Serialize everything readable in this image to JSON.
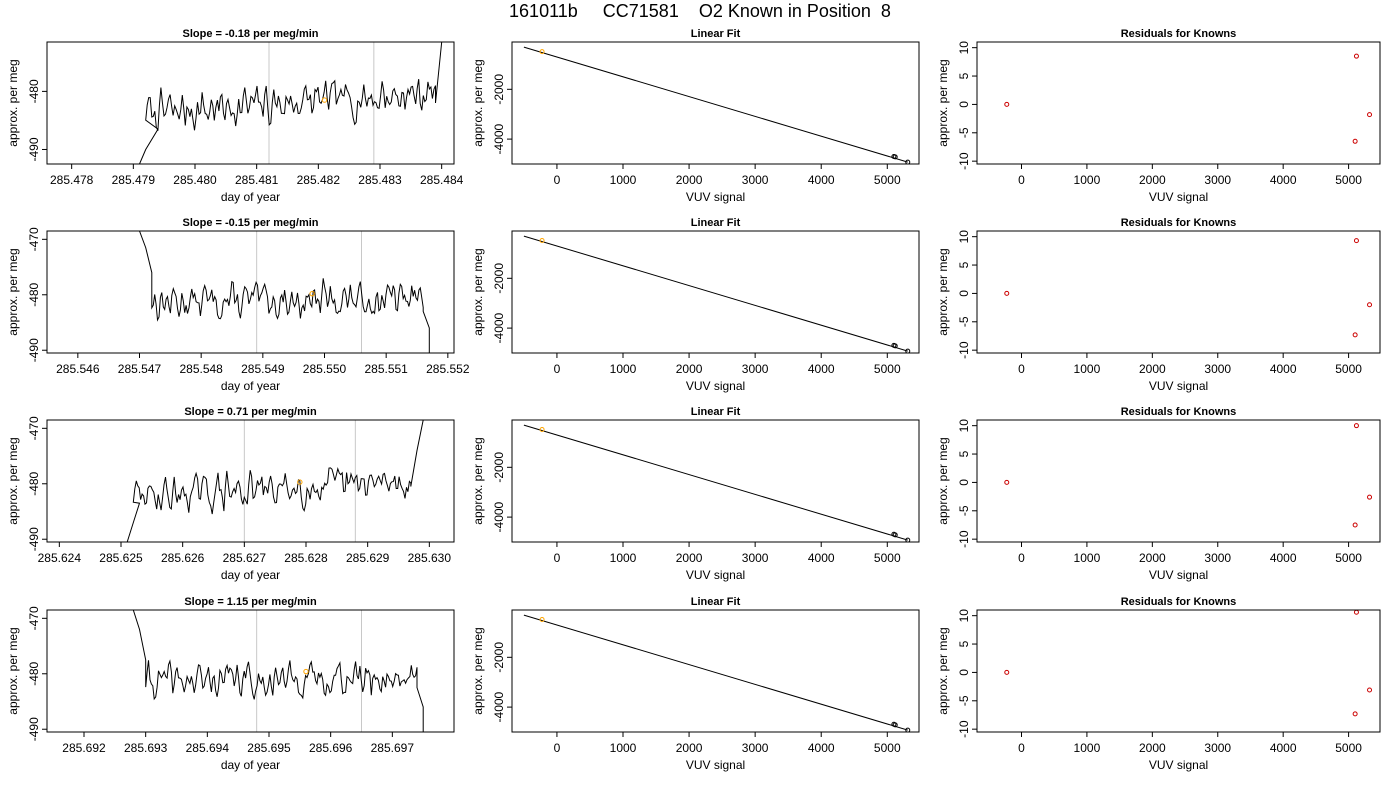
{
  "page": {
    "title": "161011b     CC71581    O2 Known in Position  8"
  },
  "colors": {
    "trace": "#000000",
    "axis": "#000000",
    "vline": "#c8c8c8",
    "mean_point": "#ffa500",
    "fit_point_hi": "#ffa500",
    "fit_point": "#000000",
    "residual_point": "#cc0000"
  },
  "chart_data": [
    {
      "type": "line",
      "panel": "timeseries",
      "title": "Slope =  -0.18  per meg/min",
      "xlabel": "day of year",
      "ylabel": "approx. per meg",
      "xlim": [
        285.4776,
        285.4842
      ],
      "ylim": [
        -492.5,
        -471.5
      ],
      "xticks": [
        285.478,
        285.479,
        285.48,
        285.481,
        285.482,
        285.483,
        285.484
      ],
      "yticks": [
        -490,
        -480
      ],
      "vlines": [
        285.4812,
        285.4829
      ],
      "mean_point": {
        "x": 285.4821,
        "y": -481.5
      },
      "trace": {
        "start": 285.4792,
        "end": 285.4839,
        "base": -482,
        "amp": 2.6,
        "trend": 3.5,
        "head": [
          [
            285.4791,
            -492.5
          ],
          [
            285.4792,
            -490
          ],
          [
            285.4794,
            -486.5
          ]
        ],
        "tail": [
          [
            285.4839,
            -482
          ],
          [
            285.484,
            -471.5
          ]
        ],
        "seed": 7
      }
    },
    {
      "type": "line",
      "panel": "timeseries",
      "title": "Slope =  -0.15  per meg/min",
      "xlabel": "day of year",
      "ylabel": "approx. per meg",
      "xlim": [
        285.5455,
        285.5521
      ],
      "ylim": [
        -490.5,
        -468.5
      ],
      "xticks": [
        285.546,
        285.547,
        285.548,
        285.549,
        285.55,
        285.551,
        285.552
      ],
      "yticks": [
        -490,
        -480,
        -470
      ],
      "vlines": [
        285.5489,
        285.5506
      ],
      "mean_point": {
        "x": 285.5498,
        "y": -479.8
      },
      "trace": {
        "start": 285.5472,
        "end": 285.5516,
        "base": -481,
        "amp": 2.3,
        "trend": 0.6,
        "head": [
          [
            285.547,
            -468.5
          ],
          [
            285.5471,
            -471.5
          ],
          [
            285.5472,
            -476
          ]
        ],
        "tail": [
          [
            285.5516,
            -483
          ],
          [
            285.5517,
            -486
          ],
          [
            285.5517,
            -490.5
          ]
        ],
        "seed": 13
      }
    },
    {
      "type": "line",
      "panel": "timeseries",
      "title": "Slope =  0.71  per meg/min",
      "xlabel": "day of year",
      "ylabel": "approx. per meg",
      "xlim": [
        285.6238,
        285.6304
      ],
      "ylim": [
        -490.5,
        -468.5
      ],
      "xticks": [
        285.624,
        285.625,
        285.626,
        285.627,
        285.628,
        285.629,
        285.63
      ],
      "yticks": [
        -490,
        -480,
        -470
      ],
      "vlines": [
        285.627,
        285.6288
      ],
      "mean_point": {
        "x": 285.6279,
        "y": -479.7
      },
      "trace": {
        "start": 285.6252,
        "end": 285.6297,
        "base": -481,
        "amp": 2.4,
        "trend": 2.5,
        "head": [
          [
            285.6251,
            -490.5
          ],
          [
            285.6252,
            -487
          ],
          [
            285.6253,
            -483.5
          ]
        ],
        "tail": [
          [
            285.6297,
            -480.5
          ],
          [
            285.6298,
            -474
          ],
          [
            285.6299,
            -468.5
          ]
        ],
        "seed": 29
      }
    },
    {
      "type": "line",
      "panel": "timeseries",
      "title": "Slope =  1.15  per meg/min",
      "xlabel": "day of year",
      "ylabel": "approx. per meg",
      "xlim": [
        285.6914,
        285.698
      ],
      "ylim": [
        -490.5,
        -468.5
      ],
      "xticks": [
        285.692,
        285.693,
        285.694,
        285.695,
        285.696,
        285.697
      ],
      "yticks": [
        -490,
        -480,
        -470
      ],
      "vlines": [
        285.6948,
        285.6965
      ],
      "mean_point": {
        "x": 285.6956,
        "y": -479.6
      },
      "trace": {
        "start": 285.693,
        "end": 285.6974,
        "base": -481,
        "amp": 2.3,
        "trend": 0.8,
        "head": [
          [
            285.6928,
            -468.5
          ],
          [
            285.6929,
            -472
          ],
          [
            285.693,
            -477.5
          ]
        ],
        "tail": [
          [
            285.6974,
            -482.5
          ],
          [
            285.6975,
            -486
          ],
          [
            285.6975,
            -490.5
          ]
        ],
        "seed": 41
      }
    },
    {
      "type": "scatter",
      "panel": "fit",
      "title": "Linear Fit",
      "xlabel": "VUV signal",
      "ylabel": "approx. per meg",
      "xlim": [
        -680,
        5480
      ],
      "ylim": [
        -5000,
        -100
      ],
      "xticks": [
        0,
        1000,
        2000,
        3000,
        4000,
        5000
      ],
      "yticks": [
        -2000,
        -4000
      ],
      "fit_line": [
        [
          -500,
          -305
        ],
        [
          5310,
          -4925
        ]
      ],
      "points": [
        {
          "x": -225,
          "y": -485,
          "hi": true
        },
        {
          "x": 5100,
          "y": -4700
        },
        {
          "x": 5120,
          "y": -4715
        },
        {
          "x": 5310,
          "y": -4925
        }
      ]
    },
    {
      "type": "scatter",
      "panel": "fit",
      "title": "Linear Fit",
      "xlabel": "VUV signal",
      "ylabel": "approx. per meg",
      "xlim": [
        -680,
        5480
      ],
      "ylim": [
        -5000,
        -100
      ],
      "xticks": [
        0,
        1000,
        2000,
        3000,
        4000,
        5000
      ],
      "yticks": [
        -2000,
        -4000
      ],
      "fit_line": [
        [
          -500,
          -305
        ],
        [
          5310,
          -4925
        ]
      ],
      "points": [
        {
          "x": -225,
          "y": -480,
          "hi": true
        },
        {
          "x": 5100,
          "y": -4695
        },
        {
          "x": 5120,
          "y": -4715
        },
        {
          "x": 5310,
          "y": -4925
        }
      ]
    },
    {
      "type": "scatter",
      "panel": "fit",
      "title": "Linear Fit",
      "xlabel": "VUV signal",
      "ylabel": "approx. per meg",
      "xlim": [
        -680,
        5480
      ],
      "ylim": [
        -5000,
        -100
      ],
      "xticks": [
        0,
        1000,
        2000,
        3000,
        4000,
        5000
      ],
      "yticks": [
        -2000,
        -4000
      ],
      "fit_line": [
        [
          -500,
          -305
        ],
        [
          5310,
          -4925
        ]
      ],
      "points": [
        {
          "x": -225,
          "y": -480,
          "hi": true
        },
        {
          "x": 5100,
          "y": -4690
        },
        {
          "x": 5120,
          "y": -4715
        },
        {
          "x": 5310,
          "y": -4925
        }
      ]
    },
    {
      "type": "scatter",
      "panel": "fit",
      "title": "Linear Fit",
      "xlabel": "VUV signal",
      "ylabel": "approx. per meg",
      "xlim": [
        -680,
        5480
      ],
      "ylim": [
        -5000,
        -100
      ],
      "xticks": [
        0,
        1000,
        2000,
        3000,
        4000,
        5000
      ],
      "yticks": [
        -2000,
        -4000
      ],
      "fit_line": [
        [
          -500,
          -305
        ],
        [
          5310,
          -4925
        ]
      ],
      "points": [
        {
          "x": -225,
          "y": -480,
          "hi": true
        },
        {
          "x": 5100,
          "y": -4690
        },
        {
          "x": 5120,
          "y": -4715
        },
        {
          "x": 5310,
          "y": -4925
        }
      ]
    },
    {
      "type": "scatter",
      "panel": "residual",
      "title": "Residuals for Knowns",
      "xlabel": "VUV signal",
      "ylabel": "approx. per meg",
      "xlim": [
        -680,
        5480
      ],
      "ylim": [
        -10.5,
        11
      ],
      "xticks": [
        0,
        1000,
        2000,
        3000,
        4000,
        5000
      ],
      "yticks": [
        -10,
        -5,
        0,
        5,
        10
      ],
      "points": [
        {
          "x": -225,
          "y": 0
        },
        {
          "x": 5120,
          "y": 8.5
        },
        {
          "x": 5100,
          "y": -6.5
        },
        {
          "x": 5320,
          "y": -1.8
        }
      ]
    },
    {
      "type": "scatter",
      "panel": "residual",
      "title": "Residuals for Knowns",
      "xlabel": "VUV signal",
      "ylabel": "approx. per meg",
      "xlim": [
        -680,
        5480
      ],
      "ylim": [
        -10.5,
        11
      ],
      "xticks": [
        0,
        1000,
        2000,
        3000,
        4000,
        5000
      ],
      "yticks": [
        -10,
        -5,
        0,
        5,
        10
      ],
      "points": [
        {
          "x": -225,
          "y": 0
        },
        {
          "x": 5120,
          "y": 9.3
        },
        {
          "x": 5100,
          "y": -7.3
        },
        {
          "x": 5320,
          "y": -2
        }
      ]
    },
    {
      "type": "scatter",
      "panel": "residual",
      "title": "Residuals for Knowns",
      "xlabel": "VUV signal",
      "ylabel": "approx. per meg",
      "xlim": [
        -680,
        5480
      ],
      "ylim": [
        -10.5,
        11
      ],
      "xticks": [
        0,
        1000,
        2000,
        3000,
        4000,
        5000
      ],
      "yticks": [
        -10,
        -5,
        0,
        5,
        10
      ],
      "points": [
        {
          "x": -225,
          "y": 0
        },
        {
          "x": 5120,
          "y": 10
        },
        {
          "x": 5100,
          "y": -7.5
        },
        {
          "x": 5320,
          "y": -2.6
        }
      ]
    },
    {
      "type": "scatter",
      "panel": "residual",
      "title": "Residuals for Knowns",
      "xlabel": "VUV signal",
      "ylabel": "approx. per meg",
      "xlim": [
        -680,
        5480
      ],
      "ylim": [
        -10.5,
        11
      ],
      "xticks": [
        0,
        1000,
        2000,
        3000,
        4000,
        5000
      ],
      "yticks": [
        -10,
        -5,
        0,
        5,
        10
      ],
      "points": [
        {
          "x": -225,
          "y": 0
        },
        {
          "x": 5120,
          "y": 10.6
        },
        {
          "x": 5100,
          "y": -7.3
        },
        {
          "x": 5320,
          "y": -3.1
        }
      ]
    }
  ]
}
